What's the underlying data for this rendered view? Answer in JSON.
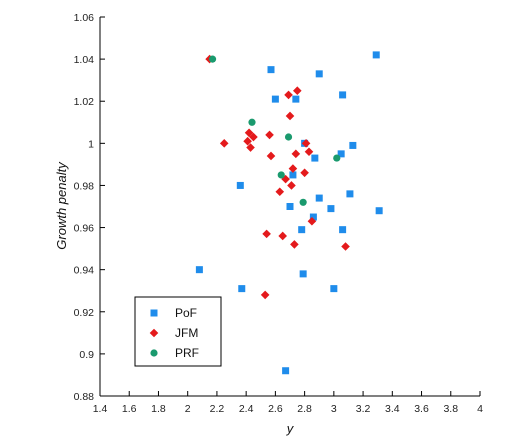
{
  "chart_data": {
    "type": "scatter",
    "xlabel": "y",
    "ylabel": "Growth penalty",
    "xlim": [
      1.4,
      4.0
    ],
    "ylim": [
      0.88,
      1.06
    ],
    "x_ticks": [
      "1.4",
      "1.6",
      "1.8",
      "2",
      "2.2",
      "2.4",
      "2.6",
      "2.8",
      "3",
      "3.2",
      "3.4",
      "3.6",
      "3.8",
      "4"
    ],
    "y_ticks": [
      "0.88",
      "0.9",
      "0.92",
      "0.94",
      "0.96",
      "0.98",
      "1",
      "1.02",
      "1.04",
      "1.06"
    ],
    "grid": false,
    "legend_position": "lower-left",
    "series": [
      {
        "name": "PoF",
        "marker": "square",
        "color": "#1f8ceb",
        "points": [
          [
            2.08,
            0.94
          ],
          [
            2.36,
            0.98
          ],
          [
            2.37,
            0.931
          ],
          [
            2.57,
            1.035
          ],
          [
            2.6,
            1.021
          ],
          [
            2.67,
            0.892
          ],
          [
            2.7,
            0.97
          ],
          [
            2.72,
            0.985
          ],
          [
            2.74,
            1.021
          ],
          [
            2.78,
            0.959
          ],
          [
            2.79,
            0.938
          ],
          [
            2.8,
            1.0
          ],
          [
            2.86,
            0.965
          ],
          [
            2.87,
            0.993
          ],
          [
            2.9,
            0.974
          ],
          [
            2.9,
            1.033
          ],
          [
            2.98,
            0.969
          ],
          [
            3.0,
            0.931
          ],
          [
            3.05,
            0.995
          ],
          [
            3.06,
            0.959
          ],
          [
            3.06,
            1.023
          ],
          [
            3.11,
            0.976
          ],
          [
            3.13,
            0.999
          ],
          [
            3.29,
            1.042
          ],
          [
            3.31,
            0.968
          ]
        ]
      },
      {
        "name": "JFM",
        "marker": "diamond",
        "color": "#e41a1c",
        "points": [
          [
            2.15,
            1.04
          ],
          [
            2.25,
            1.0
          ],
          [
            2.41,
            1.001
          ],
          [
            2.42,
            1.005
          ],
          [
            2.43,
            0.998
          ],
          [
            2.45,
            1.003
          ],
          [
            2.53,
            0.928
          ],
          [
            2.54,
            0.957
          ],
          [
            2.56,
            1.004
          ],
          [
            2.57,
            0.994
          ],
          [
            2.63,
            0.977
          ],
          [
            2.65,
            0.956
          ],
          [
            2.67,
            0.983
          ],
          [
            2.69,
            1.023
          ],
          [
            2.7,
            1.013
          ],
          [
            2.71,
            0.98
          ],
          [
            2.72,
            0.988
          ],
          [
            2.73,
            0.952
          ],
          [
            2.74,
            0.995
          ],
          [
            2.75,
            1.025
          ],
          [
            2.8,
            0.986
          ],
          [
            2.81,
            1.0
          ],
          [
            2.83,
            0.996
          ],
          [
            2.85,
            0.963
          ],
          [
            3.08,
            0.951
          ]
        ]
      },
      {
        "name": "PRF",
        "marker": "circle",
        "color": "#1a9a6e",
        "points": [
          [
            2.17,
            1.04
          ],
          [
            2.44,
            1.01
          ],
          [
            2.64,
            0.985
          ],
          [
            2.69,
            1.003
          ],
          [
            2.79,
            0.972
          ],
          [
            3.02,
            0.993
          ]
        ]
      }
    ]
  }
}
